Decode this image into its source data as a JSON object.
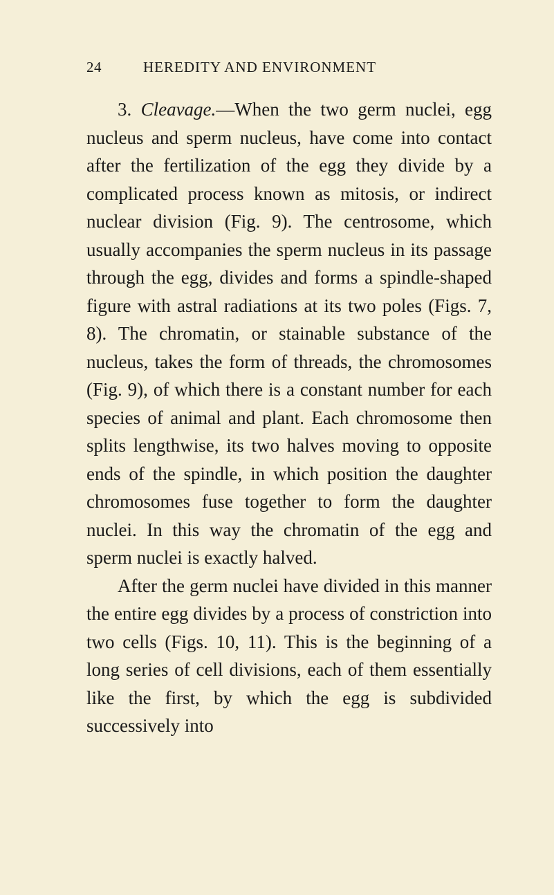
{
  "page": {
    "number": "24",
    "running_title": "HEREDITY AND ENVIRONMENT"
  },
  "paragraphs": {
    "p1": {
      "section_number": "3.",
      "section_title": "Cleavage.",
      "text": "—When the two germ nuclei, egg nucleus and sperm nucleus, have come into contact after the fertilization of the egg they divide by a complicated process known as mitosis, or indirect nuclear division (Fig. 9). The centrosome, which usually accompanies the sperm nucleus in its passage through the egg, divides and forms a spindle-shaped figure with astral radiations at its two poles (Figs. 7, 8). The chromatin, or stainable substance of the nucleus, takes the form of threads, the chromosomes (Fig. 9), of which there is a con­stant number for each species of animal and plant. Each chromosome then splits length­wise, its two halves moving to opposite ends of the spindle, in which position the daughter chromosomes fuse together to form the daugh­ter nuclei. In this way the chromatin of the egg and sperm nuclei is exactly halved."
    },
    "p2": {
      "text": "After the germ nuclei have divided in this manner the entire egg divides by a process of constriction into two cells (Figs. 10, 11). This is the beginning of a long series of cell divi­sions, each of them essentially like the first, by which the egg is subdivided successively into"
    }
  },
  "colors": {
    "page_background": "#f5efd8",
    "text_color": "#1a1a1a"
  },
  "typography": {
    "body_font_size": 27,
    "header_font_size": 21,
    "line_height": 1.5,
    "font_family": "Times New Roman"
  }
}
